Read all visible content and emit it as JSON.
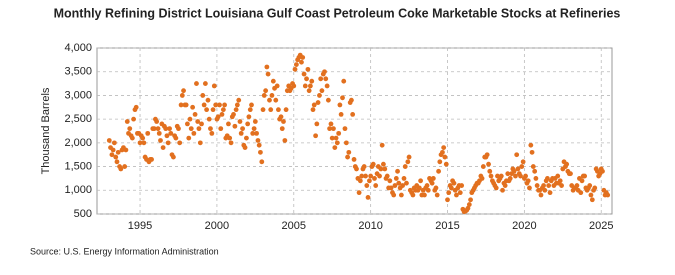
{
  "chart_data": {
    "type": "scatter",
    "title": "Monthly Refining District Louisiana Gulf Coast Petroleum Coke Marketable Stocks at Refineries",
    "y_label": "Thousand Barrels",
    "source": "Source: U.S. Energy Information Administration",
    "color": "#e2701f",
    "grid": true,
    "xlim": [
      1992.2,
      2025.7
    ],
    "xticks": [
      1995,
      2000,
      2005,
      2010,
      2015,
      2020,
      2025
    ],
    "ylim": [
      500,
      4000
    ],
    "yticks": [
      500,
      {
        "value": 1000,
        "label": "1,000"
      },
      {
        "value": 1500,
        "label": "1,500"
      },
      {
        "value": 2000,
        "label": "2,000"
      },
      {
        "value": 2500,
        "label": "2,500"
      },
      {
        "value": 3000,
        "label": "3,000"
      },
      {
        "value": 3500,
        "label": "3,500"
      },
      {
        "value": 4000,
        "label": "4,000"
      }
    ],
    "x": [
      1993.0,
      1993.08,
      1993.17,
      1993.25,
      1993.33,
      1993.42,
      1993.5,
      1993.58,
      1993.67,
      1993.75,
      1993.83,
      1993.92,
      1994.0,
      1994.08,
      1994.17,
      1994.25,
      1994.33,
      1994.42,
      1994.5,
      1994.58,
      1994.67,
      1994.75,
      1994.83,
      1994.92,
      1995.0,
      1995.08,
      1995.17,
      1995.25,
      1995.33,
      1995.42,
      1995.5,
      1995.58,
      1995.67,
      1995.75,
      1995.83,
      1995.92,
      1996.0,
      1996.08,
      1996.17,
      1996.25,
      1996.33,
      1996.42,
      1996.5,
      1996.58,
      1996.67,
      1996.75,
      1996.83,
      1996.92,
      1997.0,
      1997.08,
      1997.17,
      1997.25,
      1997.33,
      1997.42,
      1997.5,
      1997.58,
      1997.67,
      1997.75,
      1997.83,
      1997.92,
      1998.0,
      1998.08,
      1998.17,
      1998.25,
      1998.33,
      1998.42,
      1998.5,
      1998.58,
      1998.67,
      1998.75,
      1998.83,
      1998.92,
      1999.0,
      1999.08,
      1999.17,
      1999.25,
      1999.33,
      1999.42,
      1999.5,
      1999.58,
      1999.67,
      1999.75,
      1999.83,
      1999.92,
      2000.0,
      2000.08,
      2000.17,
      2000.25,
      2000.33,
      2000.42,
      2000.5,
      2000.58,
      2000.67,
      2000.75,
      2000.83,
      2000.92,
      2001.0,
      2001.08,
      2001.17,
      2001.25,
      2001.33,
      2001.42,
      2001.5,
      2001.58,
      2001.67,
      2001.75,
      2001.83,
      2001.92,
      2002.0,
      2002.08,
      2002.17,
      2002.25,
      2002.33,
      2002.42,
      2002.5,
      2002.58,
      2002.67,
      2002.75,
      2002.83,
      2002.92,
      2003.0,
      2003.08,
      2003.17,
      2003.25,
      2003.33,
      2003.42,
      2003.5,
      2003.58,
      2003.67,
      2003.75,
      2003.83,
      2003.92,
      2004.0,
      2004.08,
      2004.17,
      2004.25,
      2004.33,
      2004.42,
      2004.5,
      2004.58,
      2004.67,
      2004.75,
      2004.83,
      2004.92,
      2005.0,
      2005.08,
      2005.17,
      2005.25,
      2005.33,
      2005.42,
      2005.5,
      2005.58,
      2005.67,
      2005.75,
      2005.83,
      2005.92,
      2006.0,
      2006.08,
      2006.17,
      2006.25,
      2006.33,
      2006.42,
      2006.5,
      2006.58,
      2006.67,
      2006.75,
      2006.83,
      2006.92,
      2007.0,
      2007.08,
      2007.17,
      2007.25,
      2007.33,
      2007.42,
      2007.5,
      2007.58,
      2007.67,
      2007.75,
      2007.83,
      2007.92,
      2008.0,
      2008.08,
      2008.17,
      2008.25,
      2008.33,
      2008.42,
      2008.5,
      2008.58,
      2008.67,
      2008.75,
      2008.83,
      2008.92,
      2009.0,
      2009.08,
      2009.17,
      2009.25,
      2009.33,
      2009.42,
      2009.5,
      2009.58,
      2009.67,
      2009.75,
      2009.83,
      2009.92,
      2010.0,
      2010.08,
      2010.17,
      2010.25,
      2010.33,
      2010.42,
      2010.5,
      2010.58,
      2010.67,
      2010.75,
      2010.83,
      2010.92,
      2011.0,
      2011.08,
      2011.17,
      2011.25,
      2011.33,
      2011.42,
      2011.5,
      2011.58,
      2011.67,
      2011.75,
      2011.83,
      2011.92,
      2012.0,
      2012.08,
      2012.17,
      2012.25,
      2012.33,
      2012.42,
      2012.5,
      2012.58,
      2012.67,
      2012.75,
      2012.83,
      2012.92,
      2013.0,
      2013.08,
      2013.17,
      2013.25,
      2013.33,
      2013.42,
      2013.5,
      2013.58,
      2013.67,
      2013.75,
      2013.83,
      2013.92,
      2014.0,
      2014.08,
      2014.17,
      2014.25,
      2014.33,
      2014.42,
      2014.5,
      2014.58,
      2014.67,
      2014.75,
      2014.83,
      2014.92,
      2015.0,
      2015.08,
      2015.17,
      2015.25,
      2015.33,
      2015.42,
      2015.5,
      2015.58,
      2015.67,
      2015.75,
      2015.83,
      2015.92,
      2016.0,
      2016.08,
      2016.17,
      2016.25,
      2016.33,
      2016.42,
      2016.5,
      2016.58,
      2016.67,
      2016.75,
      2016.83,
      2016.92,
      2017.0,
      2017.08,
      2017.17,
      2017.25,
      2017.33,
      2017.42,
      2017.5,
      2017.58,
      2017.67,
      2017.75,
      2017.83,
      2017.92,
      2018.0,
      2018.08,
      2018.17,
      2018.25,
      2018.33,
      2018.42,
      2018.5,
      2018.58,
      2018.67,
      2018.75,
      2018.83,
      2018.92,
      2019.0,
      2019.08,
      2019.17,
      2019.25,
      2019.33,
      2019.42,
      2019.5,
      2019.58,
      2019.67,
      2019.75,
      2019.83,
      2019.92,
      2020.0,
      2020.08,
      2020.17,
      2020.25,
      2020.33,
      2020.42,
      2020.5,
      2020.58,
      2020.67,
      2020.75,
      2020.83,
      2020.92,
      2021.0,
      2021.08,
      2021.17,
      2021.25,
      2021.33,
      2021.42,
      2021.5,
      2021.58,
      2021.67,
      2021.75,
      2021.83,
      2021.92,
      2022.0,
      2022.08,
      2022.17,
      2022.25,
      2022.33,
      2022.42,
      2022.5,
      2022.58,
      2022.67,
      2022.75,
      2022.83,
      2022.92,
      2023.0,
      2023.08,
      2023.17,
      2023.25,
      2023.33,
      2023.42,
      2023.5,
      2023.58,
      2023.67,
      2023.75,
      2023.83,
      2023.92,
      2024.0,
      2024.08,
      2024.17,
      2024.25,
      2024.33,
      2024.42,
      2024.5,
      2024.58,
      2024.67,
      2024.75,
      2024.83,
      2024.92,
      2025.0,
      2025.08,
      2025.17,
      2025.25,
      2025.33,
      2025.42
    ],
    "values": [
      2050,
      1900,
      1750,
      1850,
      2000,
      1700,
      1600,
      1800,
      1500,
      1450,
      1850,
      1900,
      1500,
      1850,
      2450,
      2200,
      2300,
      2150,
      2100,
      2500,
      2700,
      2750,
      2200,
      2200,
      2000,
      2150,
      2100,
      2000,
      1700,
      1650,
      2200,
      1600,
      1650,
      1650,
      2300,
      2300,
      2500,
      2450,
      2300,
      2200,
      2050,
      2400,
      1900,
      2350,
      2300,
      2150,
      2000,
      2300,
      2200,
      1750,
      1700,
      2150,
      2100,
      2350,
      2300,
      2000,
      2800,
      3000,
      3100,
      2800,
      2800,
      2400,
      2100,
      2500,
      2300,
      2750,
      2200,
      2600,
      3250,
      2450,
      2300,
      2000,
      2400,
      3000,
      2800,
      3250,
      2700,
      2900,
      2500,
      2300,
      2200,
      2700,
      3200,
      2800,
      2500,
      2550,
      2800,
      2300,
      2600,
      2700,
      2800,
      2100,
      2150,
      2400,
      2100,
      2000,
      2550,
      2600,
      2350,
      2700,
      2800,
      2900,
      2450,
      2200,
      2300,
      1950,
      1900,
      2100,
      2400,
      2550,
      2700,
      2800,
      2200,
      2300,
      2450,
      2200,
      2050,
      1950,
      1800,
      1600,
      2700,
      3000,
      3100,
      3600,
      3450,
      2900,
      2700,
      3000,
      3300,
      3150,
      2900,
      3200,
      2700,
      2500,
      2550,
      2300,
      2450,
      2050,
      2700,
      3100,
      3200,
      3100,
      3150,
      3250,
      3200,
      3550,
      3650,
      3750,
      3800,
      3850,
      3700,
      3800,
      3450,
      3200,
      3350,
      3550,
      3100,
      3200,
      3300,
      2700,
      2800,
      2150,
      2400,
      2850,
      3000,
      3350,
      3100,
      3450,
      3500,
      3350,
      3200,
      2900,
      2300,
      2400,
      2100,
      2300,
      1900,
      2100,
      2000,
      2200,
      2800,
      2600,
      2950,
      3300,
      2300,
      2000,
      1700,
      1800,
      2850,
      2900,
      2600,
      1650,
      1500,
      1450,
      1250,
      950,
      1200,
      1300,
      1450,
      1500,
      1300,
      1100,
      850,
      1200,
      1300,
      1500,
      1550,
      1250,
      1100,
      1350,
      1500,
      1300,
      1450,
      1950,
      1550,
      1450,
      1250,
      1300,
      1050,
      1200,
      1050,
      950,
      900,
      1100,
      1250,
      1400,
      1150,
      1050,
      900,
      1100,
      1250,
      1500,
      1150,
      1600,
      1700,
      1000,
      950,
      900,
      1050,
      1000,
      1100,
      1000,
      1050,
      1200,
      900,
      1000,
      900,
      1050,
      1100,
      1000,
      1250,
      1200,
      1150,
      1250,
      1000,
      1050,
      900,
      1400,
      1600,
      1750,
      1800,
      1900,
      1700,
      1550,
      800,
      950,
      1100,
      1050,
      1200,
      1150,
      1000,
      900,
      1050,
      1100,
      950,
      1100,
      600,
      550,
      560,
      580,
      620,
      700,
      800,
      950,
      1000,
      1050,
      1100,
      1150,
      1150,
      1200,
      1300,
      1250,
      1500,
      1700,
      1700,
      1750,
      1550,
      1400,
      1300,
      1200,
      1150,
      1100,
      1050,
      1300,
      1200,
      1250,
      1300,
      1000,
      1150,
      1100,
      1200,
      1350,
      1200,
      1250,
      1350,
      1450,
      1400,
      1300,
      1750,
      1450,
      1350,
      1300,
      1500,
      1600,
      1250,
      1300,
      1150,
      1200,
      1050,
      1950,
      1800,
      1500,
      1400,
      1250,
      1100,
      1000,
      1000,
      900,
      1050,
      1100,
      1000,
      1200,
      1250,
      1100,
      950,
      1200,
      1250,
      1100,
      1250,
      1150,
      1300,
      1150,
      1200,
      1100,
      1450,
      1600,
      1500,
      1550,
      1400,
      1350,
      1350,
      1100,
      1000,
      1050,
      1050,
      1100,
      1000,
      1250,
      950,
      1200,
      1300,
      1300,
      1050,
      1000,
      1050,
      1100,
      900,
      800,
      1000,
      1050,
      1450,
      1400,
      1300,
      1350,
      1450,
      1400,
      1000,
      900,
      950,
      900
    ]
  }
}
